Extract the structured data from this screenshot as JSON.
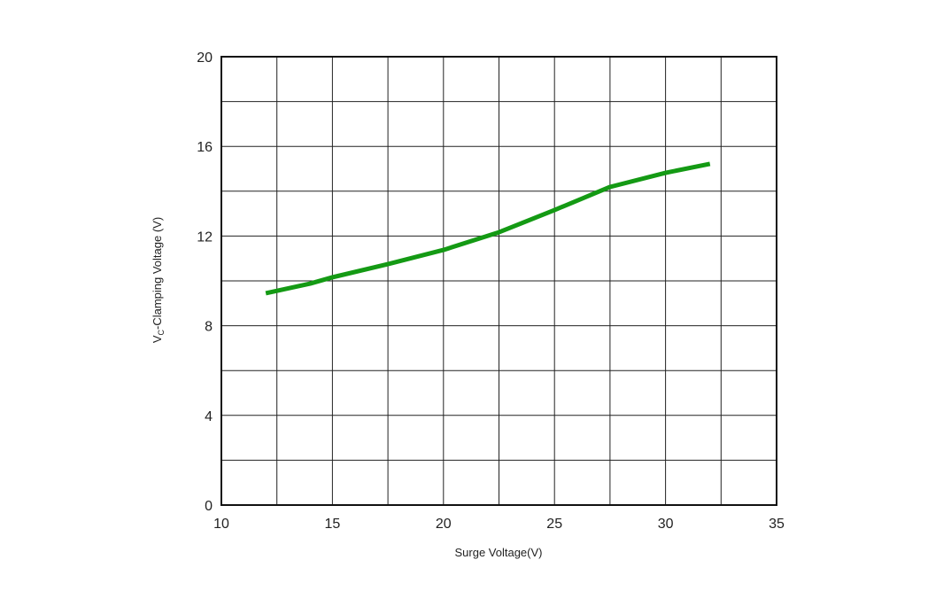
{
  "chart_data": {
    "type": "line",
    "xlabel": "Surge Voltage(V)",
    "ylabel": {
      "main": "V",
      "sub": "C",
      "rest": "-Clamping Voltage (V)"
    },
    "x": [
      12,
      14,
      15,
      17.5,
      20,
      22.5,
      25,
      27.5,
      30,
      32
    ],
    "series": [
      {
        "color": "#149a14",
        "values": [
          9.45,
          9.88,
          10.16,
          10.75,
          11.38,
          12.17,
          13.16,
          14.19,
          14.82,
          15.22
        ]
      }
    ],
    "xlim": [
      10,
      35
    ],
    "xticks": [
      10,
      15,
      20,
      25,
      30,
      35
    ],
    "xminor": [
      12.5,
      17.5,
      22.5,
      27.5,
      32.5
    ],
    "ylim": [
      0,
      20
    ],
    "yticks": [
      0,
      4,
      8,
      12,
      16,
      20
    ],
    "yminor": [
      2,
      6,
      10,
      14,
      18
    ],
    "grid": true
  }
}
